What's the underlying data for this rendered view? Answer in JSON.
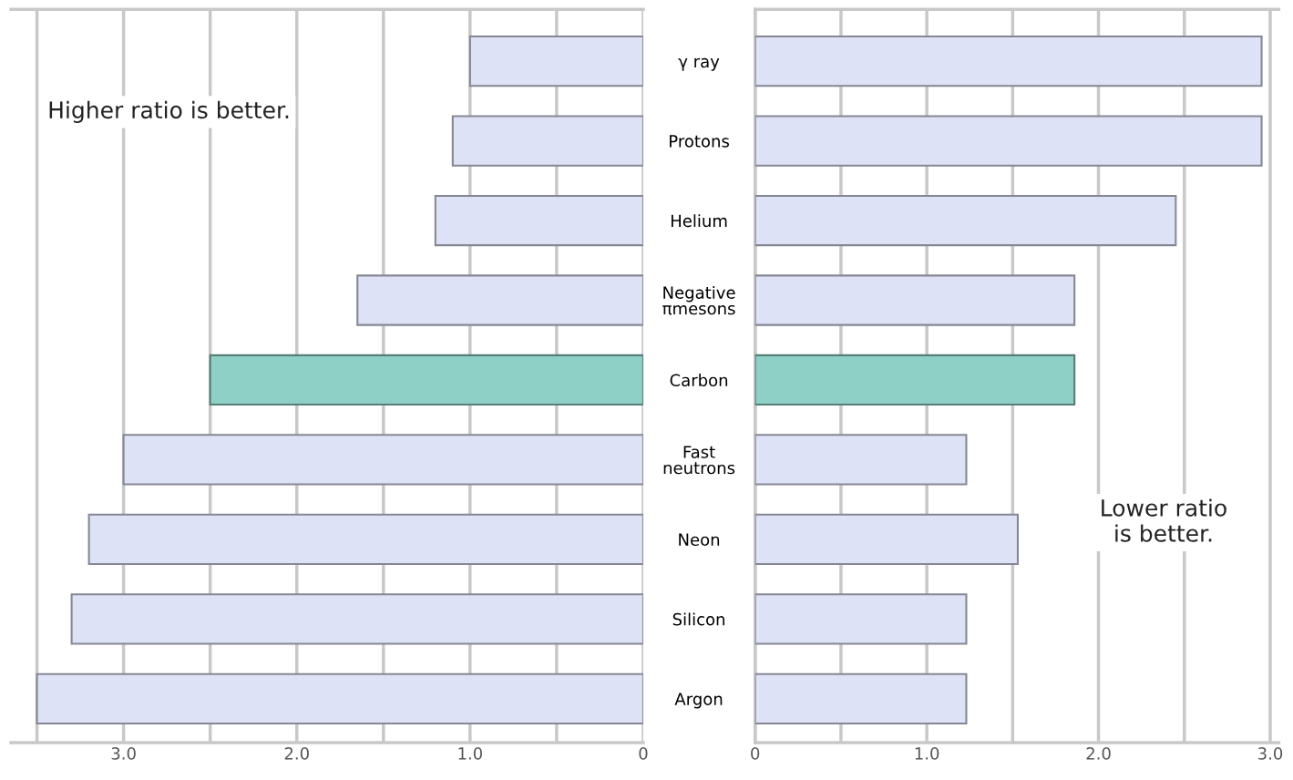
{
  "chart_data": [
    {
      "type": "bar",
      "orientation": "horizontal",
      "categories": [
        "γ ray",
        "Protons",
        "Helium",
        "Negative\nπmesons",
        "Carbon",
        "Fast\nneutrons",
        "Neon",
        "Silicon",
        "Argon"
      ],
      "values": [
        1.0,
        1.1,
        1.2,
        1.65,
        2.5,
        3.0,
        3.2,
        3.3,
        3.5
      ],
      "colors": [
        "#dde2f6",
        "#dde2f6",
        "#dde2f6",
        "#dde2f6",
        "#8fd0c6",
        "#dde2f6",
        "#dde2f6",
        "#dde2f6",
        "#dde2f6"
      ],
      "xlim": [
        3.65,
        0
      ],
      "xticks": [
        {
          "value": 3.5,
          "label": null
        },
        {
          "value": 3.0,
          "label": "3.0"
        },
        {
          "value": 2.5,
          "label": null
        },
        {
          "value": 2.0,
          "label": "2.0"
        },
        {
          "value": 1.5,
          "label": null
        },
        {
          "value": 1.0,
          "label": "1.0"
        },
        {
          "value": 0.5,
          "label": null
        },
        0
      ],
      "grid": "x",
      "annotations": [
        "Higher ratio is better."
      ]
    },
    {
      "type": "bar",
      "orientation": "horizontal",
      "categories": [
        null,
        null,
        null,
        null,
        null,
        null,
        null,
        null,
        null
      ],
      "values": [
        2.95,
        2.95,
        2.45,
        1.86,
        1.86,
        1.23,
        1.53,
        1.23,
        1.23
      ],
      "colors": [
        "#dde2f6",
        "#dde2f6",
        "#dde2f6",
        "#dde2f6",
        "#8fd0c6",
        "#dde2f6",
        "#dde2f6",
        "#dde2f6",
        "#dde2f6"
      ],
      "xlim": [
        0,
        3.05
      ],
      "xticks": [
        0,
        {
          "value": 0.5,
          "label": null
        },
        {
          "value": 1.0,
          "label": "1.0"
        },
        {
          "value": 1.5,
          "label": null
        },
        {
          "value": 2.0,
          "label": "2.0"
        },
        {
          "value": 2.5,
          "label": null
        },
        {
          "value": 3.0,
          "label": "3.0"
        }
      ],
      "grid": "x",
      "tick_labels": "x",
      "annotations": [
        "Lower ratio\nis better."
      ]
    }
  ]
}
